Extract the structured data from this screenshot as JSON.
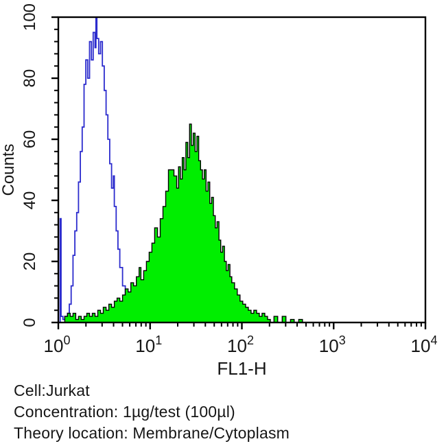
{
  "figure": {
    "captions": [
      {
        "label": "cell-line",
        "text": "Cell:Jurkat"
      },
      {
        "label": "concentration",
        "text": "Concentration: 1µg/test (100µl)"
      },
      {
        "label": "theory-location",
        "text": "Theory location: Membrane/Cytoplasm"
      }
    ]
  },
  "chart_data": {
    "type": "area",
    "subtype": "flow-cytometry-histogram-overlay",
    "title": "",
    "xlabel": "FL1-H",
    "ylabel": "Counts",
    "x_scale": "log10",
    "x_log_range": [
      0,
      4
    ],
    "x_decade_exponents": [
      0,
      1,
      2,
      3,
      4
    ],
    "x_tick_base": "10",
    "ylim": [
      0,
      100
    ],
    "y_major_ticks": [
      0,
      20,
      40,
      60,
      80,
      100
    ],
    "y_minor_step": 4,
    "grid": false,
    "legend": "none",
    "colors": {
      "axis": "#000000",
      "control_line": "#2b2bcd",
      "stained_fill": "#00ee00",
      "stained_outline": "#000000"
    },
    "series": [
      {
        "name": "control-open-histogram",
        "style": "open",
        "stroke": "#2b2bcd",
        "fill": "none",
        "peak_x_value": 2.6,
        "peak_counts": 100,
        "points": [
          [
            0.0,
            0
          ],
          [
            0.02,
            34
          ],
          [
            0.03,
            2
          ],
          [
            0.05,
            1
          ],
          [
            0.07,
            2
          ],
          [
            0.09,
            1
          ],
          [
            0.1,
            3
          ],
          [
            0.12,
            6
          ],
          [
            0.14,
            12
          ],
          [
            0.16,
            22
          ],
          [
            0.18,
            30
          ],
          [
            0.2,
            36
          ],
          [
            0.22,
            46
          ],
          [
            0.24,
            56
          ],
          [
            0.26,
            64
          ],
          [
            0.28,
            78
          ],
          [
            0.3,
            86
          ],
          [
            0.32,
            80
          ],
          [
            0.34,
            92
          ],
          [
            0.36,
            86
          ],
          [
            0.38,
            95
          ],
          [
            0.4,
            90
          ],
          [
            0.41,
            100
          ],
          [
            0.42,
            93
          ],
          [
            0.44,
            88
          ],
          [
            0.46,
            92
          ],
          [
            0.48,
            84
          ],
          [
            0.5,
            76
          ],
          [
            0.52,
            68
          ],
          [
            0.54,
            60
          ],
          [
            0.56,
            52
          ],
          [
            0.58,
            44
          ],
          [
            0.6,
            48
          ],
          [
            0.61,
            38
          ],
          [
            0.63,
            30
          ],
          [
            0.65,
            24
          ],
          [
            0.67,
            18
          ],
          [
            0.7,
            12
          ],
          [
            0.73,
            8
          ],
          [
            0.76,
            4
          ],
          [
            0.8,
            2
          ],
          [
            0.84,
            1
          ],
          [
            0.88,
            0
          ]
        ]
      },
      {
        "name": "stained-filled-histogram",
        "style": "filled",
        "stroke": "#000000",
        "fill": "#00ee00",
        "peak_x_value": 27,
        "peak_counts": 65,
        "points": [
          [
            0.05,
            0
          ],
          [
            0.07,
            2
          ],
          [
            0.1,
            3
          ],
          [
            0.13,
            2
          ],
          [
            0.16,
            3
          ],
          [
            0.19,
            1
          ],
          [
            0.22,
            2
          ],
          [
            0.25,
            1
          ],
          [
            0.28,
            2
          ],
          [
            0.31,
            3
          ],
          [
            0.34,
            2
          ],
          [
            0.37,
            3
          ],
          [
            0.4,
            2
          ],
          [
            0.43,
            4
          ],
          [
            0.46,
            3
          ],
          [
            0.49,
            5
          ],
          [
            0.52,
            4
          ],
          [
            0.55,
            6
          ],
          [
            0.58,
            5
          ],
          [
            0.61,
            7
          ],
          [
            0.64,
            8
          ],
          [
            0.67,
            7
          ],
          [
            0.7,
            9
          ],
          [
            0.73,
            11
          ],
          [
            0.76,
            10
          ],
          [
            0.79,
            13
          ],
          [
            0.82,
            12
          ],
          [
            0.85,
            15
          ],
          [
            0.88,
            18
          ],
          [
            0.9,
            14
          ],
          [
            0.93,
            17
          ],
          [
            0.96,
            20
          ],
          [
            0.99,
            23
          ],
          [
            1.02,
            26
          ],
          [
            1.05,
            31
          ],
          [
            1.08,
            28
          ],
          [
            1.11,
            34
          ],
          [
            1.14,
            38
          ],
          [
            1.17,
            43
          ],
          [
            1.2,
            50
          ],
          [
            1.23,
            50
          ],
          [
            1.26,
            48
          ],
          [
            1.29,
            44
          ],
          [
            1.31,
            51
          ],
          [
            1.33,
            47
          ],
          [
            1.35,
            54
          ],
          [
            1.37,
            50
          ],
          [
            1.39,
            59
          ],
          [
            1.41,
            54
          ],
          [
            1.43,
            65
          ],
          [
            1.45,
            58
          ],
          [
            1.47,
            62
          ],
          [
            1.49,
            56
          ],
          [
            1.51,
            61
          ],
          [
            1.53,
            53
          ],
          [
            1.55,
            50
          ],
          [
            1.57,
            47
          ],
          [
            1.59,
            50
          ],
          [
            1.61,
            43
          ],
          [
            1.63,
            46
          ],
          [
            1.65,
            39
          ],
          [
            1.67,
            41
          ],
          [
            1.69,
            35
          ],
          [
            1.71,
            31
          ],
          [
            1.73,
            33
          ],
          [
            1.75,
            27
          ],
          [
            1.77,
            23
          ],
          [
            1.79,
            25
          ],
          [
            1.81,
            20
          ],
          [
            1.83,
            17
          ],
          [
            1.85,
            19
          ],
          [
            1.87,
            15
          ],
          [
            1.89,
            13
          ],
          [
            1.92,
            11
          ],
          [
            1.95,
            9
          ],
          [
            1.98,
            7
          ],
          [
            2.01,
            6
          ],
          [
            2.04,
            5
          ],
          [
            2.07,
            4
          ],
          [
            2.1,
            3
          ],
          [
            2.13,
            4
          ],
          [
            2.16,
            3
          ],
          [
            2.19,
            2
          ],
          [
            2.22,
            3
          ],
          [
            2.25,
            2
          ],
          [
            2.28,
            1
          ],
          [
            2.31,
            0
          ],
          [
            2.35,
            2
          ],
          [
            2.39,
            0
          ],
          [
            2.44,
            2
          ],
          [
            2.48,
            0
          ],
          [
            2.53,
            1
          ],
          [
            2.57,
            0
          ],
          [
            2.62,
            1
          ],
          [
            2.66,
            0
          ]
        ]
      }
    ]
  }
}
